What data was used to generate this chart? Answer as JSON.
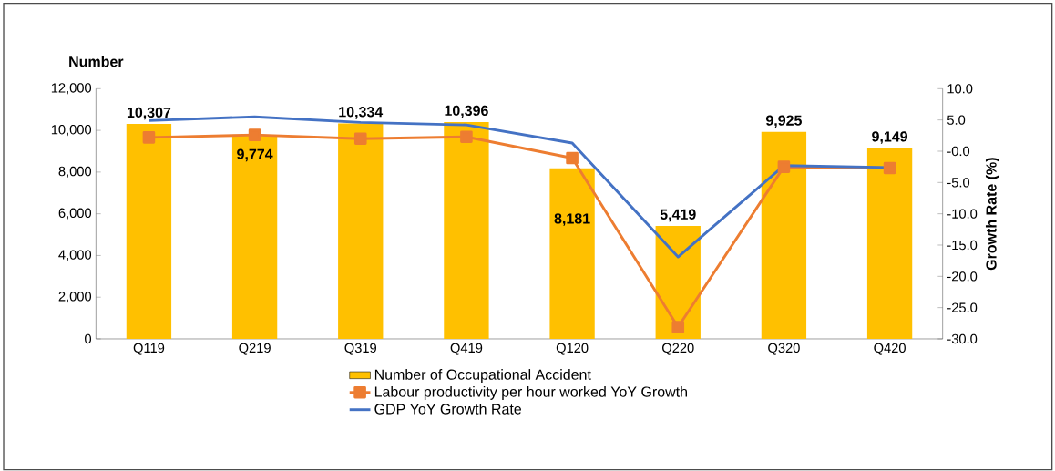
{
  "chart_data": {
    "type": "bar",
    "ylabel": "Number",
    "y2label": "Growth Rate (%)",
    "categories": [
      "Q119",
      "Q219",
      "Q319",
      "Q419",
      "Q120",
      "Q220",
      "Q320",
      "Q420"
    ],
    "series": [
      {
        "name": "Number of Occupational Accident",
        "color": "#ffc000",
        "values": [
          10307,
          9774,
          10334,
          10396,
          8181,
          5419,
          9925,
          9149
        ],
        "value_labels": [
          "10,307",
          "9,774",
          "10,334",
          "10,396",
          "8,181",
          "5,419",
          "9,925",
          "9,149"
        ]
      },
      {
        "name": "Labour productivity per hour worked YoY Growth",
        "type": "line",
        "axis": "y2",
        "color": "#ed7d31",
        "marker": "square",
        "values": [
          2.2,
          2.6,
          2.0,
          2.3,
          -1.1,
          -28.1,
          -2.5,
          -2.7
        ]
      },
      {
        "name": "GDP YoY Growth Rate",
        "type": "line",
        "axis": "y2",
        "color": "#4472c4",
        "values": [
          4.9,
          5.5,
          4.6,
          4.2,
          1.3,
          -16.9,
          -2.3,
          -2.6
        ]
      }
    ],
    "ylim": [
      0,
      12000
    ],
    "yticks": [
      0,
      {
        "value": 2000,
        "label": "2,000"
      },
      {
        "value": 4000,
        "label": "4,000"
      },
      {
        "value": 6000,
        "label": "6,000"
      },
      {
        "value": 8000,
        "label": "8,000"
      },
      {
        "value": 10000,
        "label": "10,000"
      },
      {
        "value": 12000,
        "label": "12,000"
      }
    ],
    "y2lim": [
      -30,
      10
    ],
    "y2ticks": [
      {
        "value": -30,
        "label": "-30.0"
      },
      {
        "value": -25,
        "label": "-25.0"
      },
      {
        "value": -20,
        "label": "-20.0"
      },
      {
        "value": -15,
        "label": "-15.0"
      },
      {
        "value": -10,
        "label": "-10.0"
      },
      {
        "value": -5,
        "label": "-5.0"
      },
      {
        "value": 0,
        "label": "-0.0"
      },
      {
        "value": 5,
        "label": "5.0"
      },
      {
        "value": 10,
        "label": "10.0"
      }
    ],
    "legend": "bottom",
    "grid": false
  }
}
